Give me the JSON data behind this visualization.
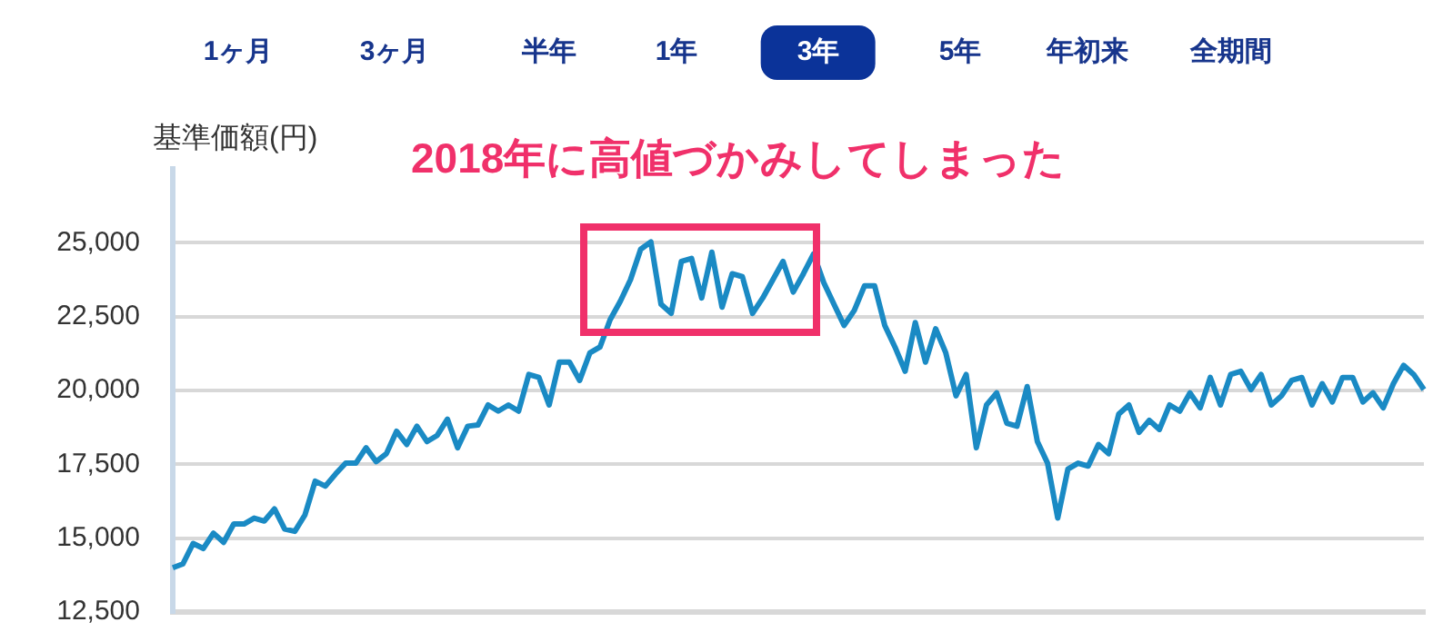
{
  "chart_data": {
    "type": "line",
    "ylabel": "基準価額(円)",
    "annotations": [
      "1ヶ月",
      "3ヶ月",
      "半年",
      "1年",
      "3年",
      "5年",
      "年初来",
      "全期間",
      "2018年に高値づかみしてしまった"
    ],
    "categories": [
      null,
      null,
      null,
      null,
      null,
      null,
      null,
      null,
      null,
      null,
      null,
      null,
      null,
      null,
      null,
      null,
      null,
      null,
      null,
      null,
      null,
      null,
      null,
      null,
      null,
      null,
      null,
      null,
      null,
      null,
      null,
      null,
      null,
      null,
      null,
      null,
      null,
      null,
      null,
      null,
      null,
      null,
      null,
      null,
      null,
      null,
      null,
      null,
      null,
      null,
      null,
      null,
      null,
      null,
      null,
      null,
      null,
      null,
      null,
      null,
      null,
      null,
      null,
      null,
      null,
      null,
      null,
      null,
      null,
      null,
      null,
      null,
      null,
      null,
      null,
      null,
      null,
      null,
      null,
      null,
      null,
      null,
      null,
      null,
      null,
      null,
      null,
      null,
      null,
      null,
      null,
      null,
      null,
      null,
      null,
      null,
      null,
      null,
      null,
      null,
      null,
      null,
      null,
      null,
      null,
      null,
      null,
      null,
      null,
      null,
      null,
      null,
      null,
      null,
      null,
      null,
      null,
      null,
      null,
      null,
      null,
      null,
      null,
      null
    ],
    "series": [
      {
        "color": "#1a8ac4",
        "values": [
          14000,
          14130,
          14820,
          14650,
          15170,
          14860,
          15480,
          15480,
          15680,
          15580,
          15990,
          15310,
          15230,
          15790,
          16930,
          16760,
          17170,
          17540,
          17540,
          18060,
          17590,
          17860,
          18620,
          18170,
          18790,
          18270,
          18480,
          19030,
          18060,
          18790,
          18830,
          19510,
          19300,
          19510,
          19300,
          20540,
          20440,
          19510,
          20960,
          20960,
          20340,
          21270,
          21470,
          22400,
          23020,
          23750,
          24780,
          25030,
          22920,
          22610,
          24370,
          24470,
          23130,
          24680,
          22820,
          23950,
          23850,
          22610,
          23130,
          23750,
          24370,
          23330,
          23950,
          24620,
          23650,
          22920,
          22200,
          22710,
          23540,
          23540,
          22200,
          21470,
          20650,
          22300,
          20960,
          22090,
          21270,
          19820,
          20540,
          18060,
          19510,
          19920,
          18890,
          18790,
          20130,
          18270,
          17540,
          15680,
          17340,
          17540,
          17440,
          18170,
          17860,
          19200,
          19510,
          18580,
          18990,
          18680,
          19510,
          19300,
          19920,
          19410,
          20440,
          19510,
          20540,
          20650,
          20030,
          20540,
          19510,
          19820,
          20340,
          20440,
          19510,
          20230,
          19610,
          20440,
          20440,
          19610,
          19920,
          19410,
          20230,
          20850,
          20540,
          20030
        ]
      }
    ],
    "ylim": [
      12500,
      27500
    ],
    "yticks": [
      {
        "value": 12500,
        "label": "12,500"
      },
      {
        "value": 15000,
        "label": "15,000"
      },
      {
        "value": 17500,
        "label": "17,500"
      },
      {
        "value": 20000,
        "label": "20,000"
      },
      {
        "value": 22500,
        "label": "22,500"
      },
      {
        "value": 25000,
        "label": "25,000"
      }
    ],
    "tick_labels": "y",
    "grid": "y",
    "legend": false,
    "marker": "none",
    "line_style": "solid"
  }
}
